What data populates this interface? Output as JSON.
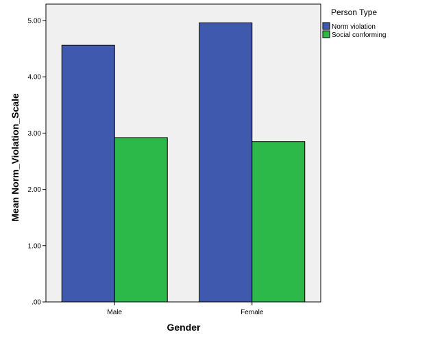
{
  "chart_data": {
    "type": "bar",
    "title": "",
    "xlabel": "Gender",
    "ylabel": "Mean Norm_Violation_Scale",
    "categories": [
      "Male",
      "Female"
    ],
    "series": [
      {
        "name": "Norm violation",
        "color": "#3e59ad",
        "values": [
          4.56,
          4.96
        ]
      },
      {
        "name": "Social conforming",
        "color": "#2db84a",
        "values": [
          2.92,
          2.85
        ]
      }
    ],
    "ylim": [
      0,
      5
    ],
    "yticks": [
      0,
      1,
      2,
      3,
      4,
      5
    ],
    "ytick_labels": [
      ".00",
      "1.00",
      "2.00",
      "3.00",
      "4.00",
      "5.00"
    ],
    "legend": {
      "title": "Person Type",
      "placement": "right"
    },
    "grid": false,
    "plot_background": "#f0f0f0"
  }
}
